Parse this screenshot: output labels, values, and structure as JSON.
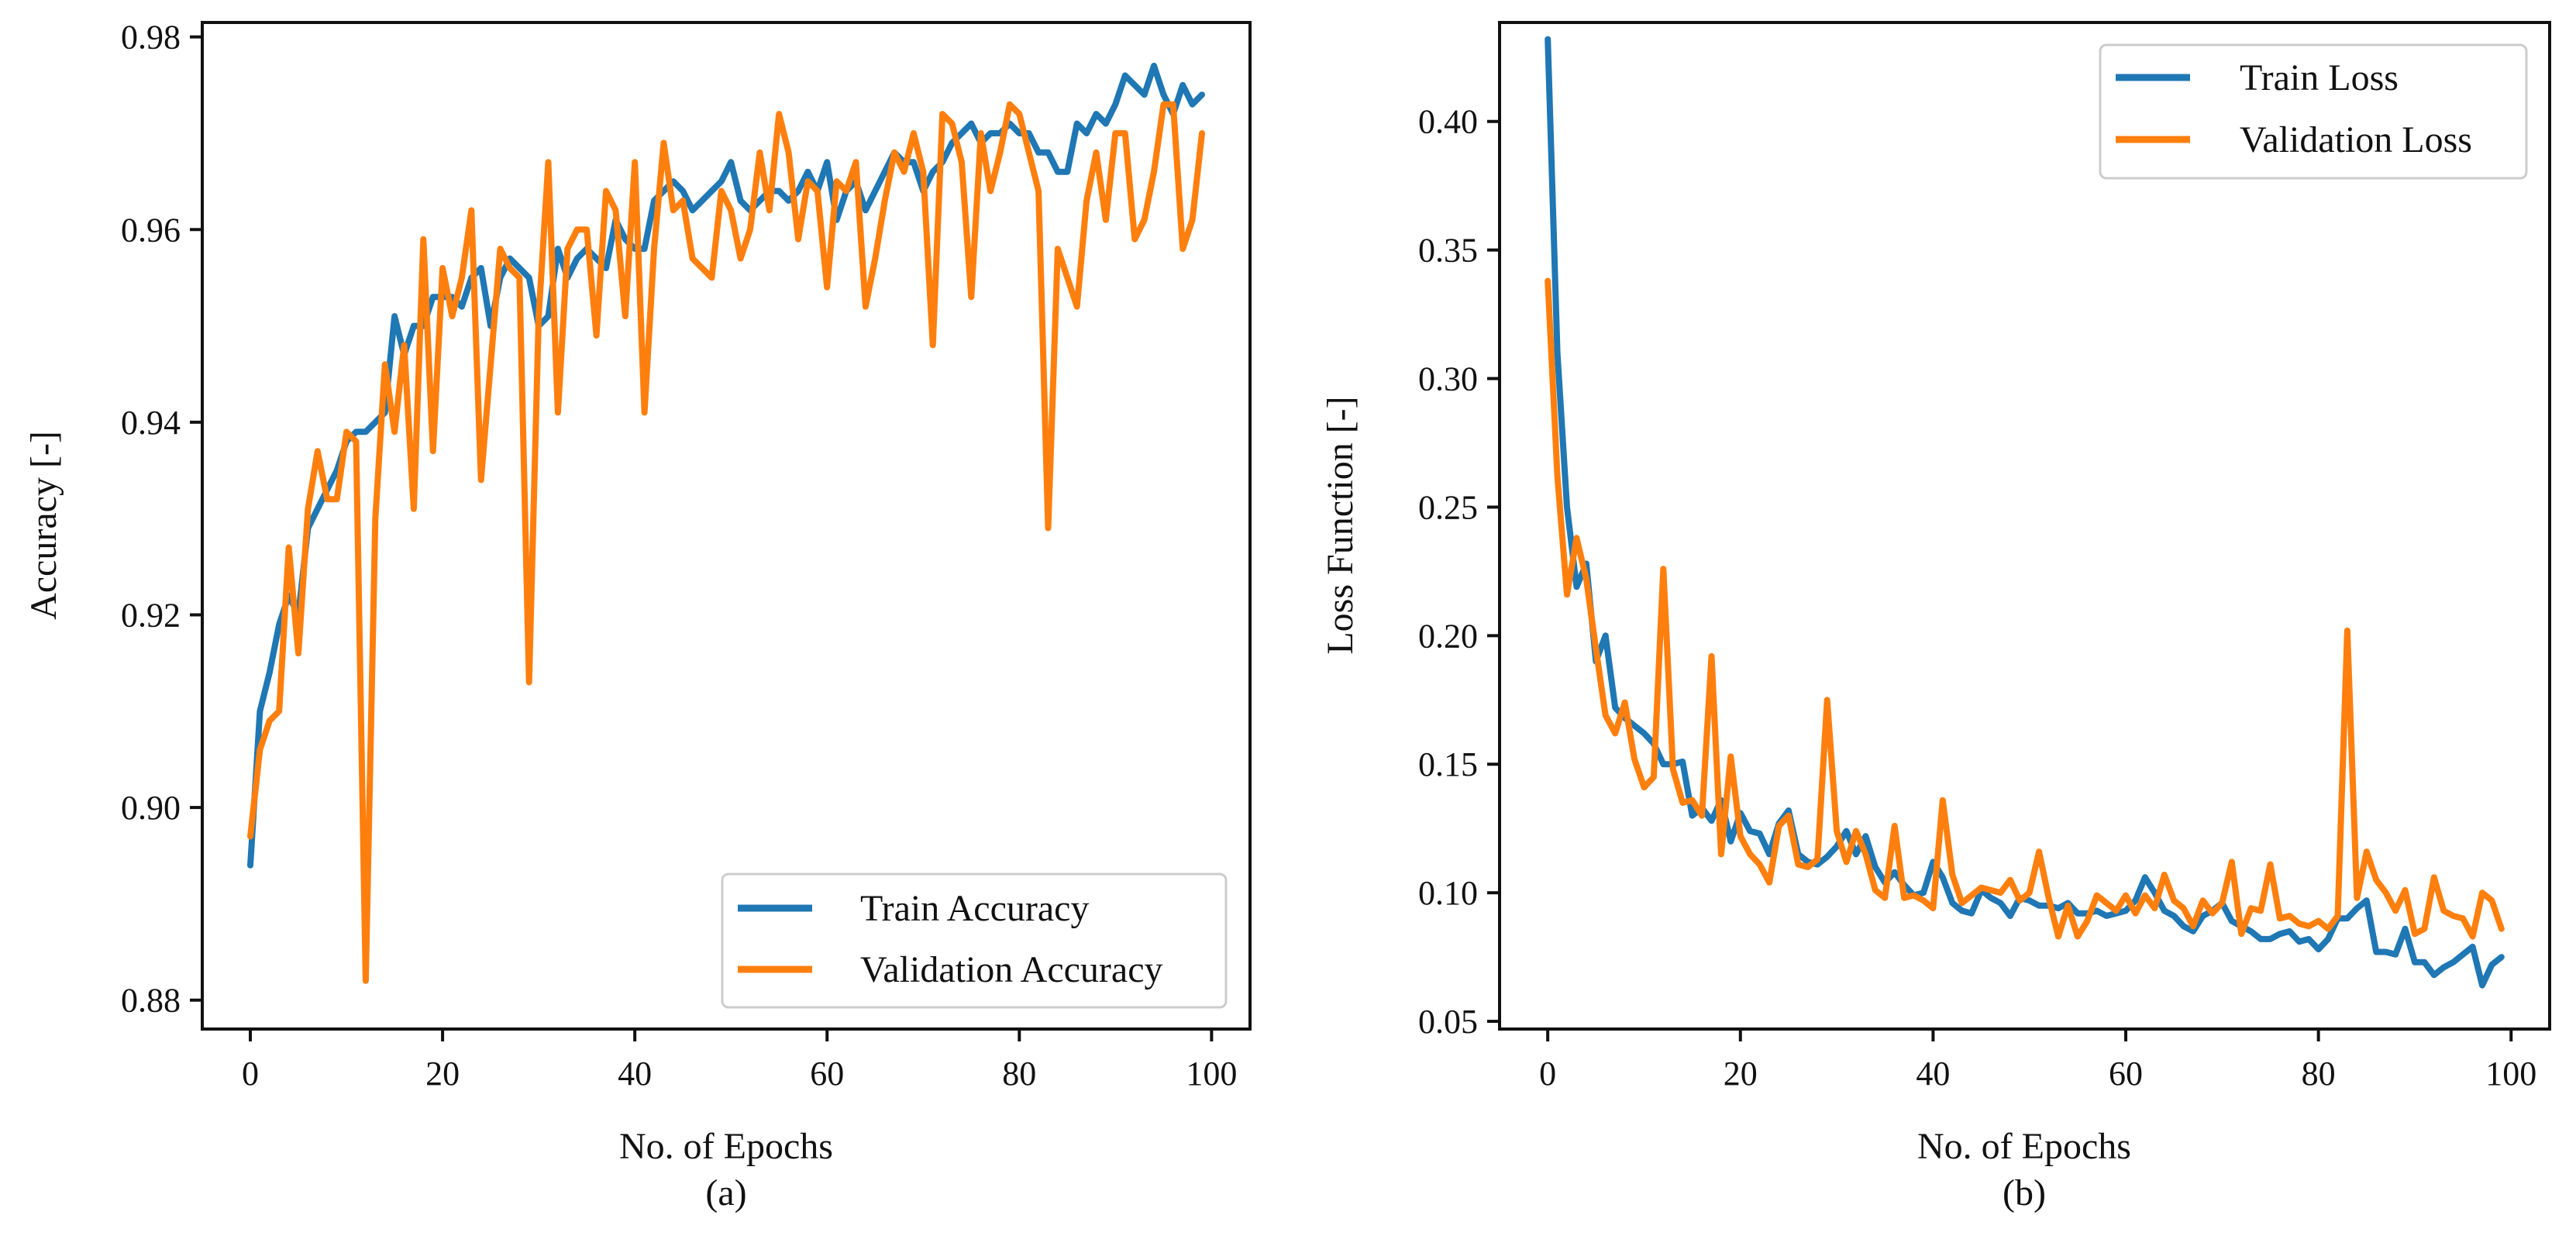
{
  "colors": {
    "train": "#1f77b4",
    "validation": "#ff7f0e",
    "axis": "#111111"
  },
  "chart_data": [
    {
      "type": "line",
      "caption": "(a)",
      "xlabel": "No. of Epochs",
      "ylabel": "Accuracy [-]",
      "xlim": [
        -5,
        104
      ],
      "ylim": [
        0.877,
        0.9815
      ],
      "xticks": [
        0,
        20,
        40,
        60,
        80,
        100
      ],
      "xtick_labels": [
        "0",
        "20",
        "40",
        "60",
        "80",
        "100"
      ],
      "yticks": [
        0.88,
        0.9,
        0.92,
        0.94,
        0.96,
        0.98
      ],
      "ytick_labels": [
        "0.88",
        "0.90",
        "0.92",
        "0.94",
        "0.96",
        "0.98"
      ],
      "legend_position": "lower-right",
      "series": [
        {
          "name": "Train Accuracy",
          "color_key": "train",
          "values": [
            0.894,
            0.91,
            0.914,
            0.919,
            0.922,
            0.92,
            0.929,
            0.931,
            0.933,
            0.935,
            0.938,
            0.939,
            0.939,
            0.94,
            0.941,
            0.951,
            0.947,
            0.95,
            0.95,
            0.953,
            0.953,
            0.953,
            0.952,
            0.955,
            0.956,
            0.95,
            0.955,
            0.957,
            0.956,
            0.955,
            0.95,
            0.951,
            0.958,
            0.955,
            0.957,
            0.958,
            0.957,
            0.956,
            0.961,
            0.959,
            0.958,
            0.958,
            0.963,
            0.964,
            0.965,
            0.964,
            0.962,
            0.963,
            0.964,
            0.965,
            0.967,
            0.963,
            0.962,
            0.963,
            0.964,
            0.964,
            0.963,
            0.964,
            0.966,
            0.964,
            0.967,
            0.961,
            0.964,
            0.965,
            0.962,
            0.964,
            0.966,
            0.968,
            0.967,
            0.967,
            0.964,
            0.966,
            0.967,
            0.969,
            0.97,
            0.971,
            0.969,
            0.97,
            0.97,
            0.971,
            0.97,
            0.97,
            0.968,
            0.968,
            0.966,
            0.966,
            0.971,
            0.97,
            0.972,
            0.971,
            0.973,
            0.976,
            0.975,
            0.974,
            0.977,
            0.974,
            0.972,
            0.975,
            0.973,
            0.974
          ]
        },
        {
          "name": "Validation Accuracy",
          "color_key": "validation",
          "values": [
            0.897,
            0.906,
            0.909,
            0.91,
            0.927,
            0.916,
            0.931,
            0.937,
            0.932,
            0.932,
            0.939,
            0.938,
            0.882,
            0.93,
            0.946,
            0.939,
            0.948,
            0.931,
            0.959,
            0.937,
            0.956,
            0.951,
            0.955,
            0.962,
            0.934,
            0.946,
            0.958,
            0.956,
            0.955,
            0.913,
            0.951,
            0.967,
            0.941,
            0.958,
            0.96,
            0.96,
            0.949,
            0.964,
            0.962,
            0.951,
            0.967,
            0.941,
            0.958,
            0.969,
            0.962,
            0.963,
            0.957,
            0.956,
            0.955,
            0.964,
            0.962,
            0.957,
            0.96,
            0.968,
            0.962,
            0.972,
            0.968,
            0.959,
            0.965,
            0.964,
            0.954,
            0.965,
            0.964,
            0.967,
            0.952,
            0.957,
            0.963,
            0.968,
            0.966,
            0.97,
            0.966,
            0.948,
            0.972,
            0.971,
            0.967,
            0.953,
            0.97,
            0.964,
            0.968,
            0.973,
            0.972,
            0.968,
            0.964,
            0.929,
            0.958,
            0.955,
            0.952,
            0.963,
            0.968,
            0.961,
            0.97,
            0.97,
            0.959,
            0.961,
            0.966,
            0.973,
            0.973,
            0.958,
            0.961,
            0.97
          ]
        }
      ]
    },
    {
      "type": "line",
      "caption": "(b)",
      "xlabel": "No. of Epochs",
      "ylabel": "Loss Function [-]",
      "xlim": [
        -5,
        104
      ],
      "ylim": [
        0.047,
        0.4385
      ],
      "xticks": [
        0,
        20,
        40,
        60,
        80,
        100
      ],
      "xtick_labels": [
        "0",
        "20",
        "40",
        "60",
        "80",
        "100"
      ],
      "yticks": [
        0.05,
        0.1,
        0.15,
        0.2,
        0.25,
        0.3,
        0.35,
        0.4
      ],
      "ytick_labels": [
        "0.05",
        "0.10",
        "0.15",
        "0.20",
        "0.25",
        "0.30",
        "0.35",
        "0.40"
      ],
      "legend_position": "top-right",
      "series": [
        {
          "name": "Train Loss",
          "color_key": "train",
          "values": [
            0.432,
            0.31,
            0.25,
            0.219,
            0.228,
            0.19,
            0.2,
            0.172,
            0.168,
            0.165,
            0.162,
            0.158,
            0.15,
            0.15,
            0.151,
            0.13,
            0.133,
            0.128,
            0.136,
            0.12,
            0.131,
            0.124,
            0.123,
            0.115,
            0.127,
            0.132,
            0.115,
            0.112,
            0.111,
            0.114,
            0.118,
            0.124,
            0.115,
            0.122,
            0.11,
            0.104,
            0.108,
            0.103,
            0.099,
            0.1,
            0.112,
            0.106,
            0.096,
            0.093,
            0.092,
            0.101,
            0.098,
            0.096,
            0.091,
            0.098,
            0.097,
            0.095,
            0.095,
            0.094,
            0.096,
            0.092,
            0.092,
            0.093,
            0.091,
            0.092,
            0.093,
            0.097,
            0.106,
            0.1,
            0.093,
            0.091,
            0.087,
            0.085,
            0.091,
            0.093,
            0.096,
            0.089,
            0.087,
            0.085,
            0.082,
            0.082,
            0.084,
            0.085,
            0.081,
            0.082,
            0.078,
            0.082,
            0.09,
            0.09,
            0.094,
            0.097,
            0.077,
            0.077,
            0.076,
            0.086,
            0.073,
            0.073,
            0.068,
            0.071,
            0.073,
            0.076,
            0.079,
            0.064,
            0.072,
            0.075
          ]
        },
        {
          "name": "Validation Loss",
          "color_key": "validation",
          "values": [
            0.338,
            0.262,
            0.216,
            0.238,
            0.222,
            0.195,
            0.169,
            0.162,
            0.174,
            0.152,
            0.141,
            0.145,
            0.226,
            0.148,
            0.135,
            0.136,
            0.13,
            0.192,
            0.115,
            0.153,
            0.122,
            0.115,
            0.111,
            0.104,
            0.126,
            0.13,
            0.111,
            0.11,
            0.113,
            0.175,
            0.124,
            0.112,
            0.124,
            0.115,
            0.101,
            0.098,
            0.126,
            0.098,
            0.099,
            0.097,
            0.094,
            0.136,
            0.107,
            0.096,
            0.099,
            0.102,
            0.101,
            0.1,
            0.105,
            0.097,
            0.1,
            0.116,
            0.098,
            0.083,
            0.095,
            0.083,
            0.089,
            0.099,
            0.096,
            0.093,
            0.099,
            0.092,
            0.099,
            0.094,
            0.107,
            0.097,
            0.094,
            0.087,
            0.097,
            0.092,
            0.096,
            0.112,
            0.084,
            0.094,
            0.093,
            0.111,
            0.09,
            0.091,
            0.088,
            0.087,
            0.089,
            0.086,
            0.091,
            0.202,
            0.098,
            0.116,
            0.105,
            0.1,
            0.093,
            0.101,
            0.084,
            0.086,
            0.106,
            0.093,
            0.091,
            0.09,
            0.083,
            0.1,
            0.097,
            0.086
          ]
        }
      ]
    }
  ]
}
